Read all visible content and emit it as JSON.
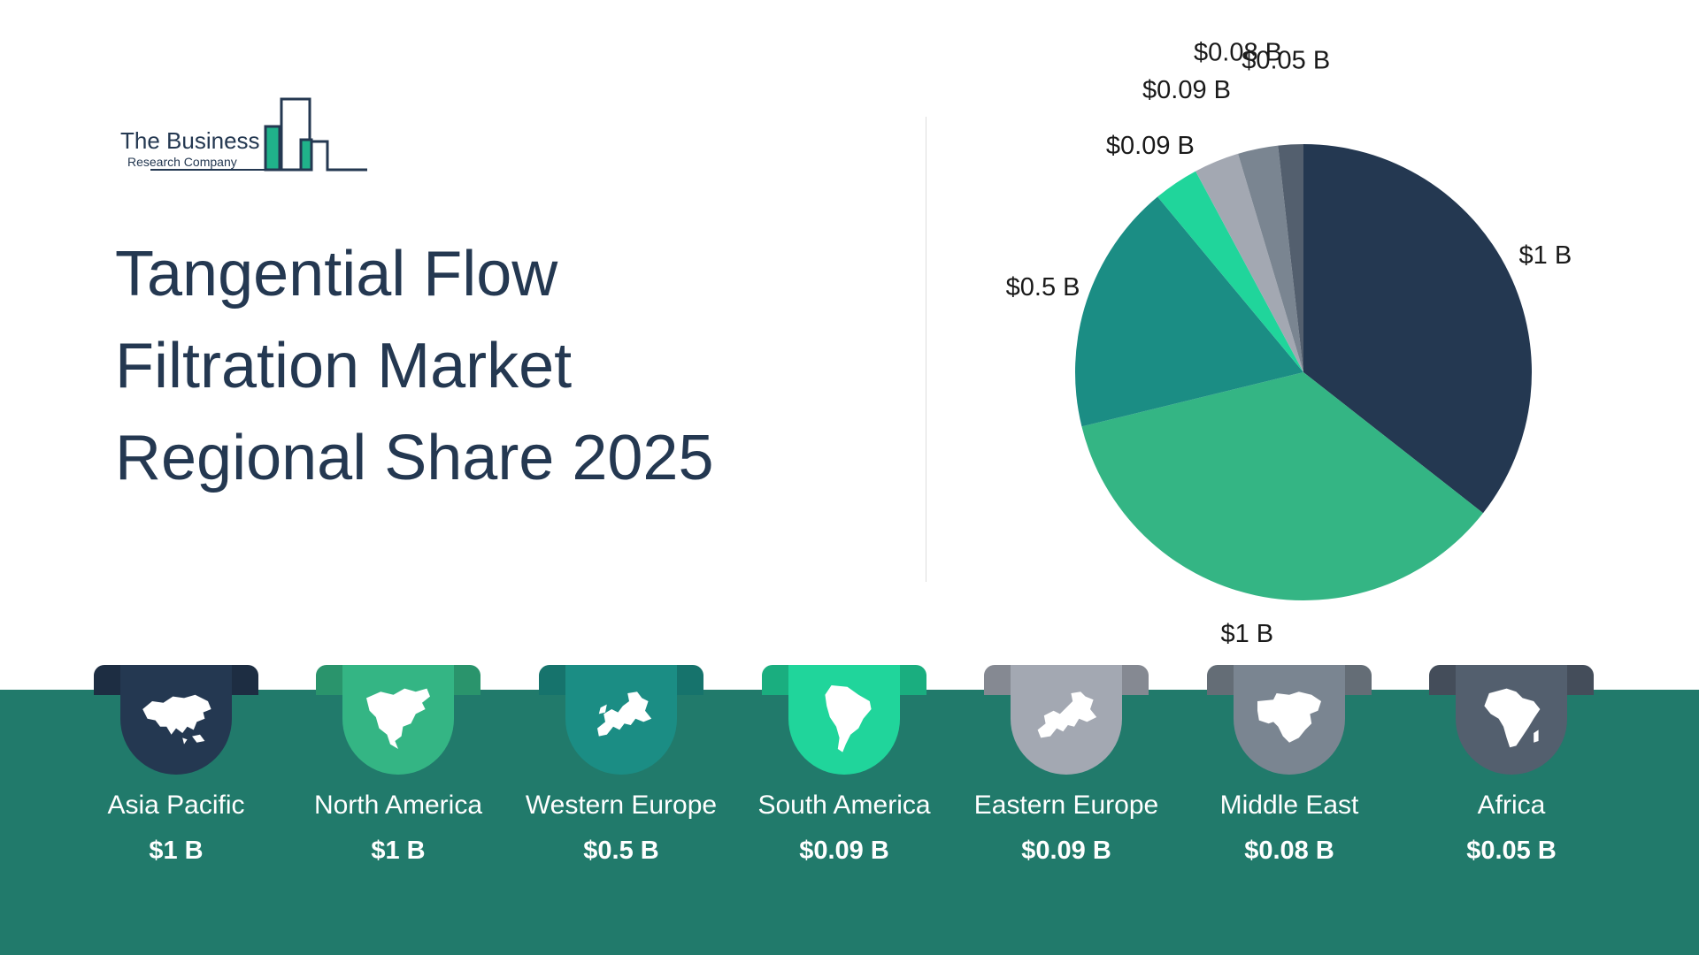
{
  "logo": {
    "line1": "The Business",
    "line2": "Research Company"
  },
  "title": {
    "line1": "Tangential Flow",
    "line2": "Filtration Market",
    "line3": "Regional Share 2025"
  },
  "colors": {
    "accent_dark": "#243851",
    "band": "#217a6b",
    "slices": [
      "#243851",
      "#34b584",
      "#1b8d84",
      "#20d59b",
      "#a3a8b2",
      "#7a8591",
      "#535f6e"
    ]
  },
  "chart_data": {
    "type": "pie",
    "categories": [
      "Asia Pacific",
      "North America",
      "Western Europe",
      "South America",
      "Eastern Europe",
      "Middle East",
      "Africa"
    ],
    "values": [
      1,
      1,
      0.5,
      0.09,
      0.09,
      0.08,
      0.05
    ],
    "labels": [
      "$1 B",
      "$1 B",
      "$0.5 B",
      "$0.09 B",
      "$0.09 B",
      "$0.08 B",
      "$0.05 B"
    ],
    "start_angle": "12 o'clock",
    "direction": "clockwise"
  },
  "regions": [
    {
      "name": "Asia Pacific",
      "value": "$1 B",
      "icon": "asia-map-icon",
      "color": "#243851"
    },
    {
      "name": "North America",
      "value": "$1 B",
      "icon": "north-america-map-icon",
      "color": "#34b584"
    },
    {
      "name": "Western Europe",
      "value": "$0.5 B",
      "icon": "western-europe-map-icon",
      "color": "#1b8d84"
    },
    {
      "name": "South America",
      "value": "$0.09 B",
      "icon": "south-america-map-icon",
      "color": "#20d59b"
    },
    {
      "name": "Eastern Europe",
      "value": "$0.09 B",
      "icon": "eastern-europe-map-icon",
      "color": "#a3a8b2"
    },
    {
      "name": "Middle East",
      "value": "$0.08 B",
      "icon": "middle-east-map-icon",
      "color": "#7a8591"
    },
    {
      "name": "Africa",
      "value": "$0.05 B",
      "icon": "africa-map-icon",
      "color": "#535f6e"
    }
  ]
}
